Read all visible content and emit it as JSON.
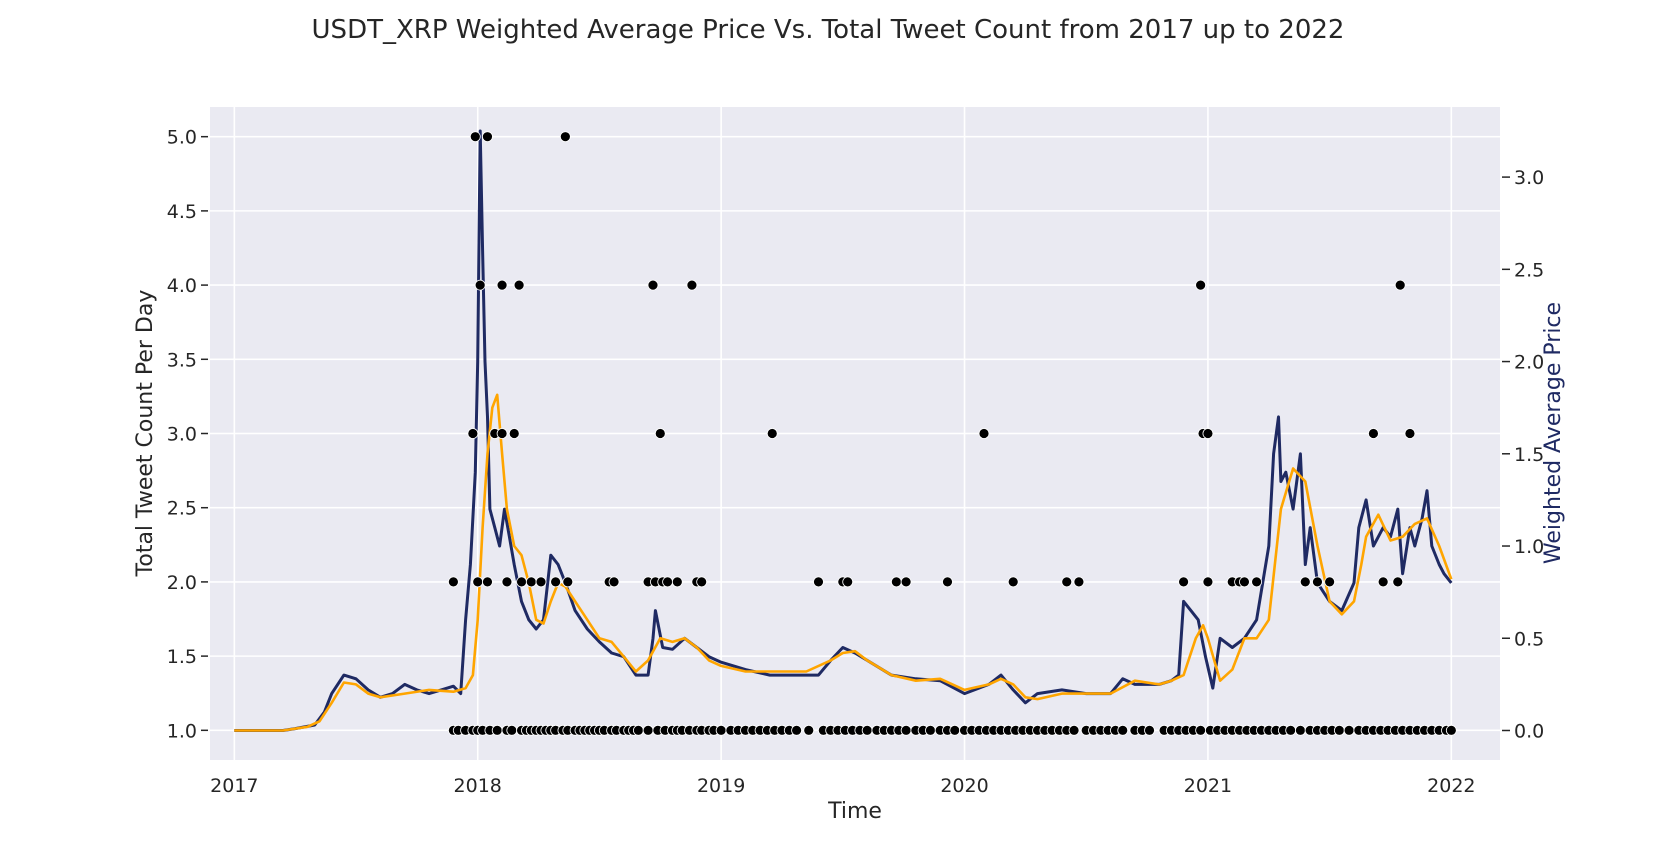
{
  "chart_data": {
    "type": "line",
    "title": "USDT_XRP Weighted Average Price Vs. Total Tweet Count from 2017 up to 2022",
    "xlabel": "Time",
    "ylabel_left": "Total Tweet Count Per Day",
    "ylabel_right": "Weighted Average Price",
    "x_ticks": [
      "2017",
      "2018",
      "2019",
      "2020",
      "2021",
      "2022"
    ],
    "x_range": [
      2016.9,
      2022.2
    ],
    "left_ticks": [
      "1.0",
      "1.5",
      "2.0",
      "2.5",
      "3.0",
      "3.5",
      "4.0",
      "4.5",
      "5.0"
    ],
    "left_range": [
      0.8,
      5.2
    ],
    "right_ticks": [
      "0.0",
      "0.5",
      "1.0",
      "1.5",
      "2.0",
      "2.5",
      "3.0"
    ],
    "right_range": [
      -0.16,
      3.38
    ],
    "grid": true,
    "colors": {
      "background": "#eaeaf2",
      "grid": "#ffffff",
      "price": "#1f2a63",
      "smoothed": "#ffa500",
      "tweets": "#000000"
    },
    "series": [
      {
        "kind": "price",
        "axis": "right",
        "x": [
          2017.0,
          2017.1,
          2017.2,
          2017.25,
          2017.33,
          2017.37,
          2017.4,
          2017.45,
          2017.5,
          2017.55,
          2017.6,
          2017.65,
          2017.7,
          2017.75,
          2017.8,
          2017.85,
          2017.9,
          2017.93,
          2017.95,
          2017.97,
          2017.99,
          2018.0,
          2018.01,
          2018.02,
          2018.03,
          2018.04,
          2018.05,
          2018.07,
          2018.09,
          2018.11,
          2018.13,
          2018.15,
          2018.18,
          2018.21,
          2018.24,
          2018.27,
          2018.3,
          2018.33,
          2018.36,
          2018.4,
          2018.45,
          2018.5,
          2018.55,
          2018.6,
          2018.65,
          2018.7,
          2018.72,
          2018.73,
          2018.76,
          2018.8,
          2018.85,
          2018.9,
          2018.95,
          2019.0,
          2019.1,
          2019.2,
          2019.3,
          2019.4,
          2019.45,
          2019.5,
          2019.55,
          2019.6,
          2019.7,
          2019.8,
          2019.9,
          2020.0,
          2020.1,
          2020.15,
          2020.2,
          2020.25,
          2020.3,
          2020.4,
          2020.5,
          2020.6,
          2020.65,
          2020.7,
          2020.8,
          2020.85,
          2020.88,
          2020.9,
          2020.93,
          2020.96,
          2020.99,
          2021.02,
          2021.05,
          2021.1,
          2021.15,
          2021.2,
          2021.25,
          2021.27,
          2021.29,
          2021.3,
          2021.32,
          2021.35,
          2021.38,
          2021.4,
          2021.42,
          2021.45,
          2021.5,
          2021.55,
          2021.6,
          2021.62,
          2021.65,
          2021.68,
          2021.7,
          2021.72,
          2021.75,
          2021.78,
          2021.8,
          2021.83,
          2021.85,
          2021.88,
          2021.9,
          2021.92,
          2021.95,
          2021.97,
          2022.0
        ],
        "values": [
          0.0,
          0.0,
          0.0,
          0.01,
          0.03,
          0.1,
          0.2,
          0.3,
          0.28,
          0.22,
          0.18,
          0.2,
          0.25,
          0.22,
          0.2,
          0.22,
          0.24,
          0.2,
          0.6,
          0.9,
          1.4,
          2.0,
          3.25,
          2.6,
          2.0,
          1.7,
          1.2,
          1.1,
          1.0,
          1.2,
          1.05,
          0.9,
          0.7,
          0.6,
          0.55,
          0.6,
          0.95,
          0.9,
          0.8,
          0.65,
          0.55,
          0.48,
          0.42,
          0.4,
          0.3,
          0.3,
          0.5,
          0.65,
          0.45,
          0.44,
          0.5,
          0.45,
          0.4,
          0.37,
          0.33,
          0.3,
          0.3,
          0.3,
          0.38,
          0.45,
          0.42,
          0.38,
          0.3,
          0.28,
          0.27,
          0.2,
          0.25,
          0.3,
          0.22,
          0.15,
          0.2,
          0.22,
          0.2,
          0.2,
          0.28,
          0.25,
          0.25,
          0.27,
          0.3,
          0.7,
          0.65,
          0.6,
          0.4,
          0.23,
          0.5,
          0.45,
          0.5,
          0.6,
          1.0,
          1.5,
          1.7,
          1.35,
          1.4,
          1.2,
          1.5,
          0.9,
          1.1,
          0.8,
          0.7,
          0.65,
          0.8,
          1.1,
          1.25,
          1.0,
          1.05,
          1.1,
          1.05,
          1.2,
          0.85,
          1.1,
          1.0,
          1.15,
          1.3,
          1.0,
          0.9,
          0.85,
          0.8
        ]
      },
      {
        "kind": "smoothed",
        "axis": "right",
        "x": [
          2017.0,
          2017.1,
          2017.2,
          2017.3,
          2017.35,
          2017.4,
          2017.45,
          2017.5,
          2017.55,
          2017.6,
          2017.7,
          2017.8,
          2017.9,
          2017.95,
          2017.98,
          2018.0,
          2018.02,
          2018.04,
          2018.06,
          2018.08,
          2018.1,
          2018.12,
          2018.15,
          2018.18,
          2018.21,
          2018.24,
          2018.27,
          2018.3,
          2018.33,
          2018.36,
          2018.4,
          2018.45,
          2018.5,
          2018.55,
          2018.6,
          2018.65,
          2018.7,
          2018.75,
          2018.8,
          2018.85,
          2018.9,
          2018.95,
          2019.0,
          2019.1,
          2019.2,
          2019.3,
          2019.35,
          2019.45,
          2019.5,
          2019.55,
          2019.6,
          2019.7,
          2019.8,
          2019.9,
          2020.0,
          2020.1,
          2020.15,
          2020.2,
          2020.25,
          2020.3,
          2020.4,
          2020.5,
          2020.6,
          2020.7,
          2020.8,
          2020.85,
          2020.9,
          2020.95,
          2020.98,
          2021.0,
          2021.05,
          2021.1,
          2021.15,
          2021.2,
          2021.25,
          2021.3,
          2021.35,
          2021.4,
          2021.45,
          2021.5,
          2021.55,
          2021.6,
          2021.63,
          2021.65,
          2021.7,
          2021.75,
          2021.8,
          2021.85,
          2021.9,
          2021.95,
          2022.0
        ],
        "values": [
          0.0,
          0.0,
          0.0,
          0.02,
          0.05,
          0.15,
          0.26,
          0.25,
          0.2,
          0.18,
          0.2,
          0.22,
          0.21,
          0.23,
          0.3,
          0.6,
          1.1,
          1.5,
          1.75,
          1.82,
          1.5,
          1.2,
          1.0,
          0.95,
          0.8,
          0.6,
          0.58,
          0.7,
          0.8,
          0.78,
          0.7,
          0.6,
          0.5,
          0.48,
          0.4,
          0.32,
          0.38,
          0.5,
          0.48,
          0.5,
          0.45,
          0.38,
          0.35,
          0.32,
          0.32,
          0.32,
          0.32,
          0.38,
          0.42,
          0.43,
          0.38,
          0.3,
          0.27,
          0.28,
          0.22,
          0.25,
          0.28,
          0.25,
          0.18,
          0.17,
          0.2,
          0.2,
          0.2,
          0.27,
          0.25,
          0.27,
          0.3,
          0.5,
          0.57,
          0.5,
          0.27,
          0.33,
          0.5,
          0.5,
          0.6,
          1.2,
          1.42,
          1.35,
          1.0,
          0.7,
          0.63,
          0.7,
          0.9,
          1.05,
          1.17,
          1.03,
          1.05,
          1.12,
          1.15,
          1.0,
          0.82
        ]
      },
      {
        "kind": "tweets",
        "axis": "left",
        "points": [
          [
            2017.9,
            2
          ],
          [
            2017.98,
            3
          ],
          [
            2017.99,
            5
          ],
          [
            2018.0,
            2
          ],
          [
            2018.01,
            4
          ],
          [
            2018.04,
            5
          ],
          [
            2018.04,
            2
          ],
          [
            2018.07,
            3
          ],
          [
            2018.1,
            4
          ],
          [
            2018.1,
            3
          ],
          [
            2018.12,
            2
          ],
          [
            2018.15,
            3
          ],
          [
            2018.17,
            4
          ],
          [
            2018.18,
            2
          ],
          [
            2018.22,
            2
          ],
          [
            2018.26,
            2
          ],
          [
            2018.32,
            2
          ],
          [
            2018.36,
            5
          ],
          [
            2018.37,
            2
          ],
          [
            2018.54,
            2
          ],
          [
            2018.56,
            2
          ],
          [
            2018.7,
            2
          ],
          [
            2018.72,
            4
          ],
          [
            2018.73,
            2
          ],
          [
            2018.75,
            3
          ],
          [
            2018.76,
            2
          ],
          [
            2018.78,
            2
          ],
          [
            2018.82,
            2
          ],
          [
            2018.88,
            4
          ],
          [
            2018.9,
            2
          ],
          [
            2018.92,
            2
          ],
          [
            2019.21,
            3
          ],
          [
            2019.4,
            2
          ],
          [
            2019.5,
            2
          ],
          [
            2019.52,
            2
          ],
          [
            2019.72,
            2
          ],
          [
            2019.76,
            2
          ],
          [
            2019.93,
            2
          ],
          [
            2020.08,
            3
          ],
          [
            2020.2,
            2
          ],
          [
            2020.42,
            2
          ],
          [
            2020.47,
            2
          ],
          [
            2020.9,
            2
          ],
          [
            2020.97,
            4
          ],
          [
            2020.98,
            3
          ],
          [
            2021.0,
            3
          ],
          [
            2021.0,
            2
          ],
          [
            2021.1,
            2
          ],
          [
            2021.13,
            2
          ],
          [
            2021.15,
            2
          ],
          [
            2021.2,
            2
          ],
          [
            2021.4,
            2
          ],
          [
            2021.45,
            2
          ],
          [
            2021.5,
            2
          ],
          [
            2021.68,
            3
          ],
          [
            2021.72,
            2
          ],
          [
            2021.78,
            2
          ],
          [
            2021.79,
            4
          ],
          [
            2021.83,
            3
          ]
        ],
        "baseline_value": 1,
        "baseline_x": [
          2017.9,
          2017.92,
          2017.95,
          2017.98,
          2018.0,
          2018.02,
          2018.05,
          2018.08,
          2018.12,
          2018.14,
          2018.18,
          2018.2,
          2018.22,
          2018.24,
          2018.26,
          2018.28,
          2018.3,
          2018.32,
          2018.35,
          2018.37,
          2018.4,
          2018.42,
          2018.44,
          2018.46,
          2018.48,
          2018.5,
          2018.52,
          2018.55,
          2018.57,
          2018.6,
          2018.62,
          2018.64,
          2018.66,
          2018.7,
          2018.74,
          2018.77,
          2018.8,
          2018.82,
          2018.84,
          2018.87,
          2018.9,
          2018.92,
          2018.95,
          2018.97,
          2019.0,
          2019.04,
          2019.07,
          2019.1,
          2019.13,
          2019.16,
          2019.19,
          2019.22,
          2019.25,
          2019.28,
          2019.31,
          2019.36,
          2019.42,
          2019.45,
          2019.48,
          2019.51,
          2019.54,
          2019.57,
          2019.6,
          2019.64,
          2019.67,
          2019.7,
          2019.73,
          2019.76,
          2019.8,
          2019.83,
          2019.86,
          2019.9,
          2019.93,
          2019.96,
          2020.0,
          2020.03,
          2020.06,
          2020.09,
          2020.12,
          2020.15,
          2020.18,
          2020.21,
          2020.24,
          2020.27,
          2020.3,
          2020.33,
          2020.36,
          2020.39,
          2020.42,
          2020.45,
          2020.5,
          2020.53,
          2020.56,
          2020.59,
          2020.62,
          2020.65,
          2020.7,
          2020.73,
          2020.76,
          2020.82,
          2020.85,
          2020.88,
          2020.91,
          2020.94,
          2020.97,
          2021.01,
          2021.04,
          2021.07,
          2021.1,
          2021.13,
          2021.16,
          2021.19,
          2021.22,
          2021.25,
          2021.28,
          2021.31,
          2021.34,
          2021.38,
          2021.42,
          2021.45,
          2021.48,
          2021.51,
          2021.54,
          2021.58,
          2021.62,
          2021.65,
          2021.68,
          2021.71,
          2021.74,
          2021.77,
          2021.8,
          2021.83,
          2021.86,
          2021.89,
          2021.92,
          2021.95,
          2021.98,
          2022.0
        ]
      }
    ]
  }
}
